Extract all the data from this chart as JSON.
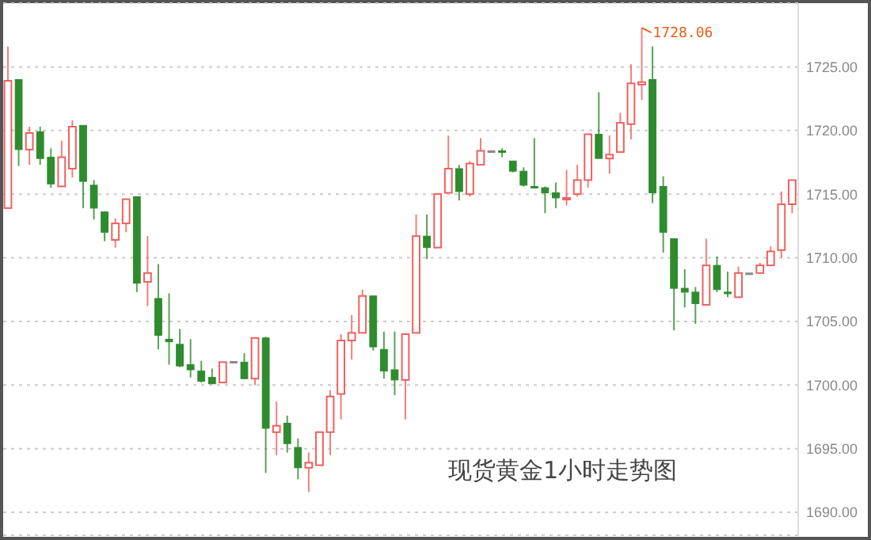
{
  "chart_data": {
    "type": "candlestick",
    "title": "现货黄金1小时走势图",
    "categories": [
      null,
      null,
      null,
      null,
      null,
      null,
      null,
      null,
      null,
      null,
      null,
      null,
      null,
      null,
      null,
      null,
      null,
      null,
      null,
      null,
      null,
      null,
      null,
      null,
      null,
      null,
      null,
      null,
      null,
      null,
      null,
      null,
      null,
      null,
      null,
      null,
      null,
      null,
      null,
      null,
      null,
      null,
      null,
      null,
      null,
      null,
      null,
      null,
      null,
      null,
      null,
      null,
      null,
      null,
      null,
      null,
      null,
      null,
      null,
      null,
      null,
      null,
      null,
      null,
      null,
      null,
      null,
      null,
      null,
      null,
      null,
      null,
      null,
      null
    ],
    "ohlc": [
      [
        1713.9,
        1726.6,
        1713.9,
        1723.9
      ],
      [
        1724.0,
        1724.0,
        1717.2,
        1718.5
      ],
      [
        1718.5,
        1720.3,
        1717.3,
        1719.8
      ],
      [
        1719.9,
        1720.3,
        1717.3,
        1717.8
      ],
      [
        1717.9,
        1718.6,
        1715.5,
        1715.8
      ],
      [
        1715.6,
        1719.2,
        1715.6,
        1717.9
      ],
      [
        1717.0,
        1720.8,
        1716.3,
        1720.3
      ],
      [
        1720.4,
        1720.4,
        1713.9,
        1716.0
      ],
      [
        1715.7,
        1716.1,
        1713.0,
        1713.9
      ],
      [
        1713.6,
        1713.6,
        1711.3,
        1712.0
      ],
      [
        1711.4,
        1713.1,
        1710.8,
        1712.7
      ],
      [
        1712.7,
        1714.6,
        1712.0,
        1714.6
      ],
      [
        1714.8,
        1714.8,
        1707.3,
        1708.0
      ],
      [
        1708.1,
        1711.7,
        1706.2,
        1708.8
      ],
      [
        1706.8,
        1709.5,
        1702.8,
        1703.9
      ],
      [
        1703.6,
        1707.2,
        1701.6,
        1703.4
      ],
      [
        1703.2,
        1704.4,
        1701.4,
        1701.5
      ],
      [
        1701.6,
        1703.6,
        1700.6,
        1701.2
      ],
      [
        1701.1,
        1701.9,
        1700.2,
        1700.3
      ],
      [
        1700.6,
        1701.3,
        1700.1,
        1700.1
      ],
      [
        1700.2,
        1701.8,
        1700.2,
        1701.8
      ],
      [
        1701.85,
        1701.85,
        1701.85,
        1701.85
      ],
      [
        1701.8,
        1702.5,
        1700.5,
        1700.5
      ],
      [
        1700.5,
        1703.7,
        1700.0,
        1703.7
      ],
      [
        1703.7,
        1703.8,
        1693.1,
        1696.6
      ],
      [
        1696.3,
        1698.7,
        1694.5,
        1696.8
      ],
      [
        1697.0,
        1697.6,
        1694.7,
        1695.4
      ],
      [
        1695.1,
        1695.8,
        1692.6,
        1693.5
      ],
      [
        1693.5,
        1694.7,
        1691.6,
        1693.9
      ],
      [
        1693.7,
        1696.3,
        1693.7,
        1696.3
      ],
      [
        1696.3,
        1699.6,
        1694.5,
        1699.1
      ],
      [
        1699.3,
        1704.0,
        1697.3,
        1703.5
      ],
      [
        1703.5,
        1705.5,
        1702.0,
        1704.1
      ],
      [
        1704.1,
        1707.5,
        1704.1,
        1707.0
      ],
      [
        1707.0,
        1707.0,
        1702.7,
        1703.0
      ],
      [
        1702.8,
        1704.2,
        1700.5,
        1701.1
      ],
      [
        1701.2,
        1704.2,
        1699.2,
        1700.4
      ],
      [
        1700.4,
        1704.0,
        1697.3,
        1704.0
      ],
      [
        1704.1,
        1713.4,
        1704.1,
        1711.7
      ],
      [
        1711.7,
        1713.4,
        1709.9,
        1710.8
      ],
      [
        1710.8,
        1715.0,
        1710.8,
        1715.0
      ],
      [
        1715.1,
        1719.6,
        1715.1,
        1717.0
      ],
      [
        1717.0,
        1717.3,
        1714.5,
        1715.2
      ],
      [
        1715.0,
        1717.6,
        1714.8,
        1717.4
      ],
      [
        1717.3,
        1719.4,
        1717.3,
        1718.4
      ],
      [
        1718.4,
        1718.4,
        1718.4,
        1718.4
      ],
      [
        1718.4,
        1718.6,
        1717.9,
        1718.3
      ],
      [
        1717.6,
        1717.6,
        1716.7,
        1716.8
      ],
      [
        1716.8,
        1717.1,
        1715.6,
        1715.7
      ],
      [
        1715.6,
        1719.4,
        1715.5,
        1715.5
      ],
      [
        1715.5,
        1715.6,
        1713.5,
        1715.1
      ],
      [
        1715.1,
        1715.9,
        1713.9,
        1714.7
      ],
      [
        1714.6,
        1716.9,
        1714.1,
        1714.7
      ],
      [
        1715.0,
        1717.3,
        1714.8,
        1716.1
      ],
      [
        1716.1,
        1719.7,
        1715.5,
        1719.7
      ],
      [
        1719.7,
        1723.0,
        1717.8,
        1717.8
      ],
      [
        1717.8,
        1719.6,
        1716.6,
        1718.1
      ],
      [
        1718.3,
        1721.4,
        1718.3,
        1720.6
      ],
      [
        1720.5,
        1725.2,
        1719.3,
        1723.7
      ],
      [
        1723.6,
        1728.06,
        1722.4,
        1723.8
      ],
      [
        1724.0,
        1726.6,
        1714.3,
        1715.1
      ],
      [
        1715.6,
        1716.4,
        1710.4,
        1712.0
      ],
      [
        1711.5,
        1711.5,
        1704.3,
        1707.6
      ],
      [
        1707.6,
        1709.1,
        1706.1,
        1707.3
      ],
      [
        1707.3,
        1707.7,
        1704.8,
        1706.4
      ],
      [
        1706.3,
        1711.5,
        1706.3,
        1709.4
      ],
      [
        1709.4,
        1710.1,
        1707.3,
        1707.5
      ],
      [
        1707.3,
        1708.9,
        1706.9,
        1707.2
      ],
      [
        1706.9,
        1709.3,
        1706.9,
        1708.8
      ],
      [
        1708.8,
        1708.8,
        1708.8,
        1708.8
      ],
      [
        1708.8,
        1709.6,
        1708.8,
        1709.4
      ],
      [
        1709.4,
        1710.9,
        1709.4,
        1710.5
      ],
      [
        1710.6,
        1715.2,
        1710.0,
        1714.2
      ],
      [
        1714.2,
        1716.1,
        1713.5,
        1716.1
      ]
    ],
    "colors": [
      "#f06060",
      "#2e8b2e",
      "#f06060",
      "#2e8b2e",
      "#2e8b2e",
      "#f06060",
      "#f06060",
      "#2e8b2e",
      "#2e8b2e",
      "#2e8b2e",
      "#f06060",
      "#f06060",
      "#2e8b2e",
      "#f06060",
      "#2e8b2e",
      "#2e8b2e",
      "#2e8b2e",
      "#2e8b2e",
      "#2e8b2e",
      "#2e8b2e",
      "#f06060",
      "#888888",
      "#2e8b2e",
      "#f06060",
      "#2e8b2e",
      "#f06060",
      "#2e8b2e",
      "#2e8b2e",
      "#f06060",
      "#f06060",
      "#f06060",
      "#f06060",
      "#f06060",
      "#f06060",
      "#2e8b2e",
      "#2e8b2e",
      "#2e8b2e",
      "#f06060",
      "#f06060",
      "#2e8b2e",
      "#f06060",
      "#f06060",
      "#2e8b2e",
      "#f06060",
      "#f06060",
      "#888888",
      "#2e8b2e",
      "#2e8b2e",
      "#2e8b2e",
      "#2e8b2e",
      "#2e8b2e",
      "#2e8b2e",
      "#f06060",
      "#f06060",
      "#f06060",
      "#2e8b2e",
      "#f06060",
      "#f06060",
      "#f06060",
      "#f06060",
      "#2e8b2e",
      "#2e8b2e",
      "#2e8b2e",
      "#2e8b2e",
      "#2e8b2e",
      "#f06060",
      "#2e8b2e",
      "#2e8b2e",
      "#f06060",
      "#888888",
      "#f06060",
      "#f06060",
      "#f06060",
      "#f06060"
    ],
    "ylim": [
      1688.2,
      1730
    ],
    "yticks": [
      {
        "value": 1690,
        "label": "1690.00"
      },
      {
        "value": 1695,
        "label": "1695.00"
      },
      {
        "value": 1700,
        "label": "1700.00"
      },
      {
        "value": 1705,
        "label": "1705.00"
      },
      {
        "value": 1710,
        "label": "1710.00"
      },
      {
        "value": 1715,
        "label": "1715.00"
      },
      {
        "value": 1720,
        "label": "1720.00"
      },
      {
        "value": 1725,
        "label": "1725.00"
      }
    ],
    "tick_labels": "y",
    "grid": "y",
    "annotations": [
      "1728.06"
    ]
  }
}
